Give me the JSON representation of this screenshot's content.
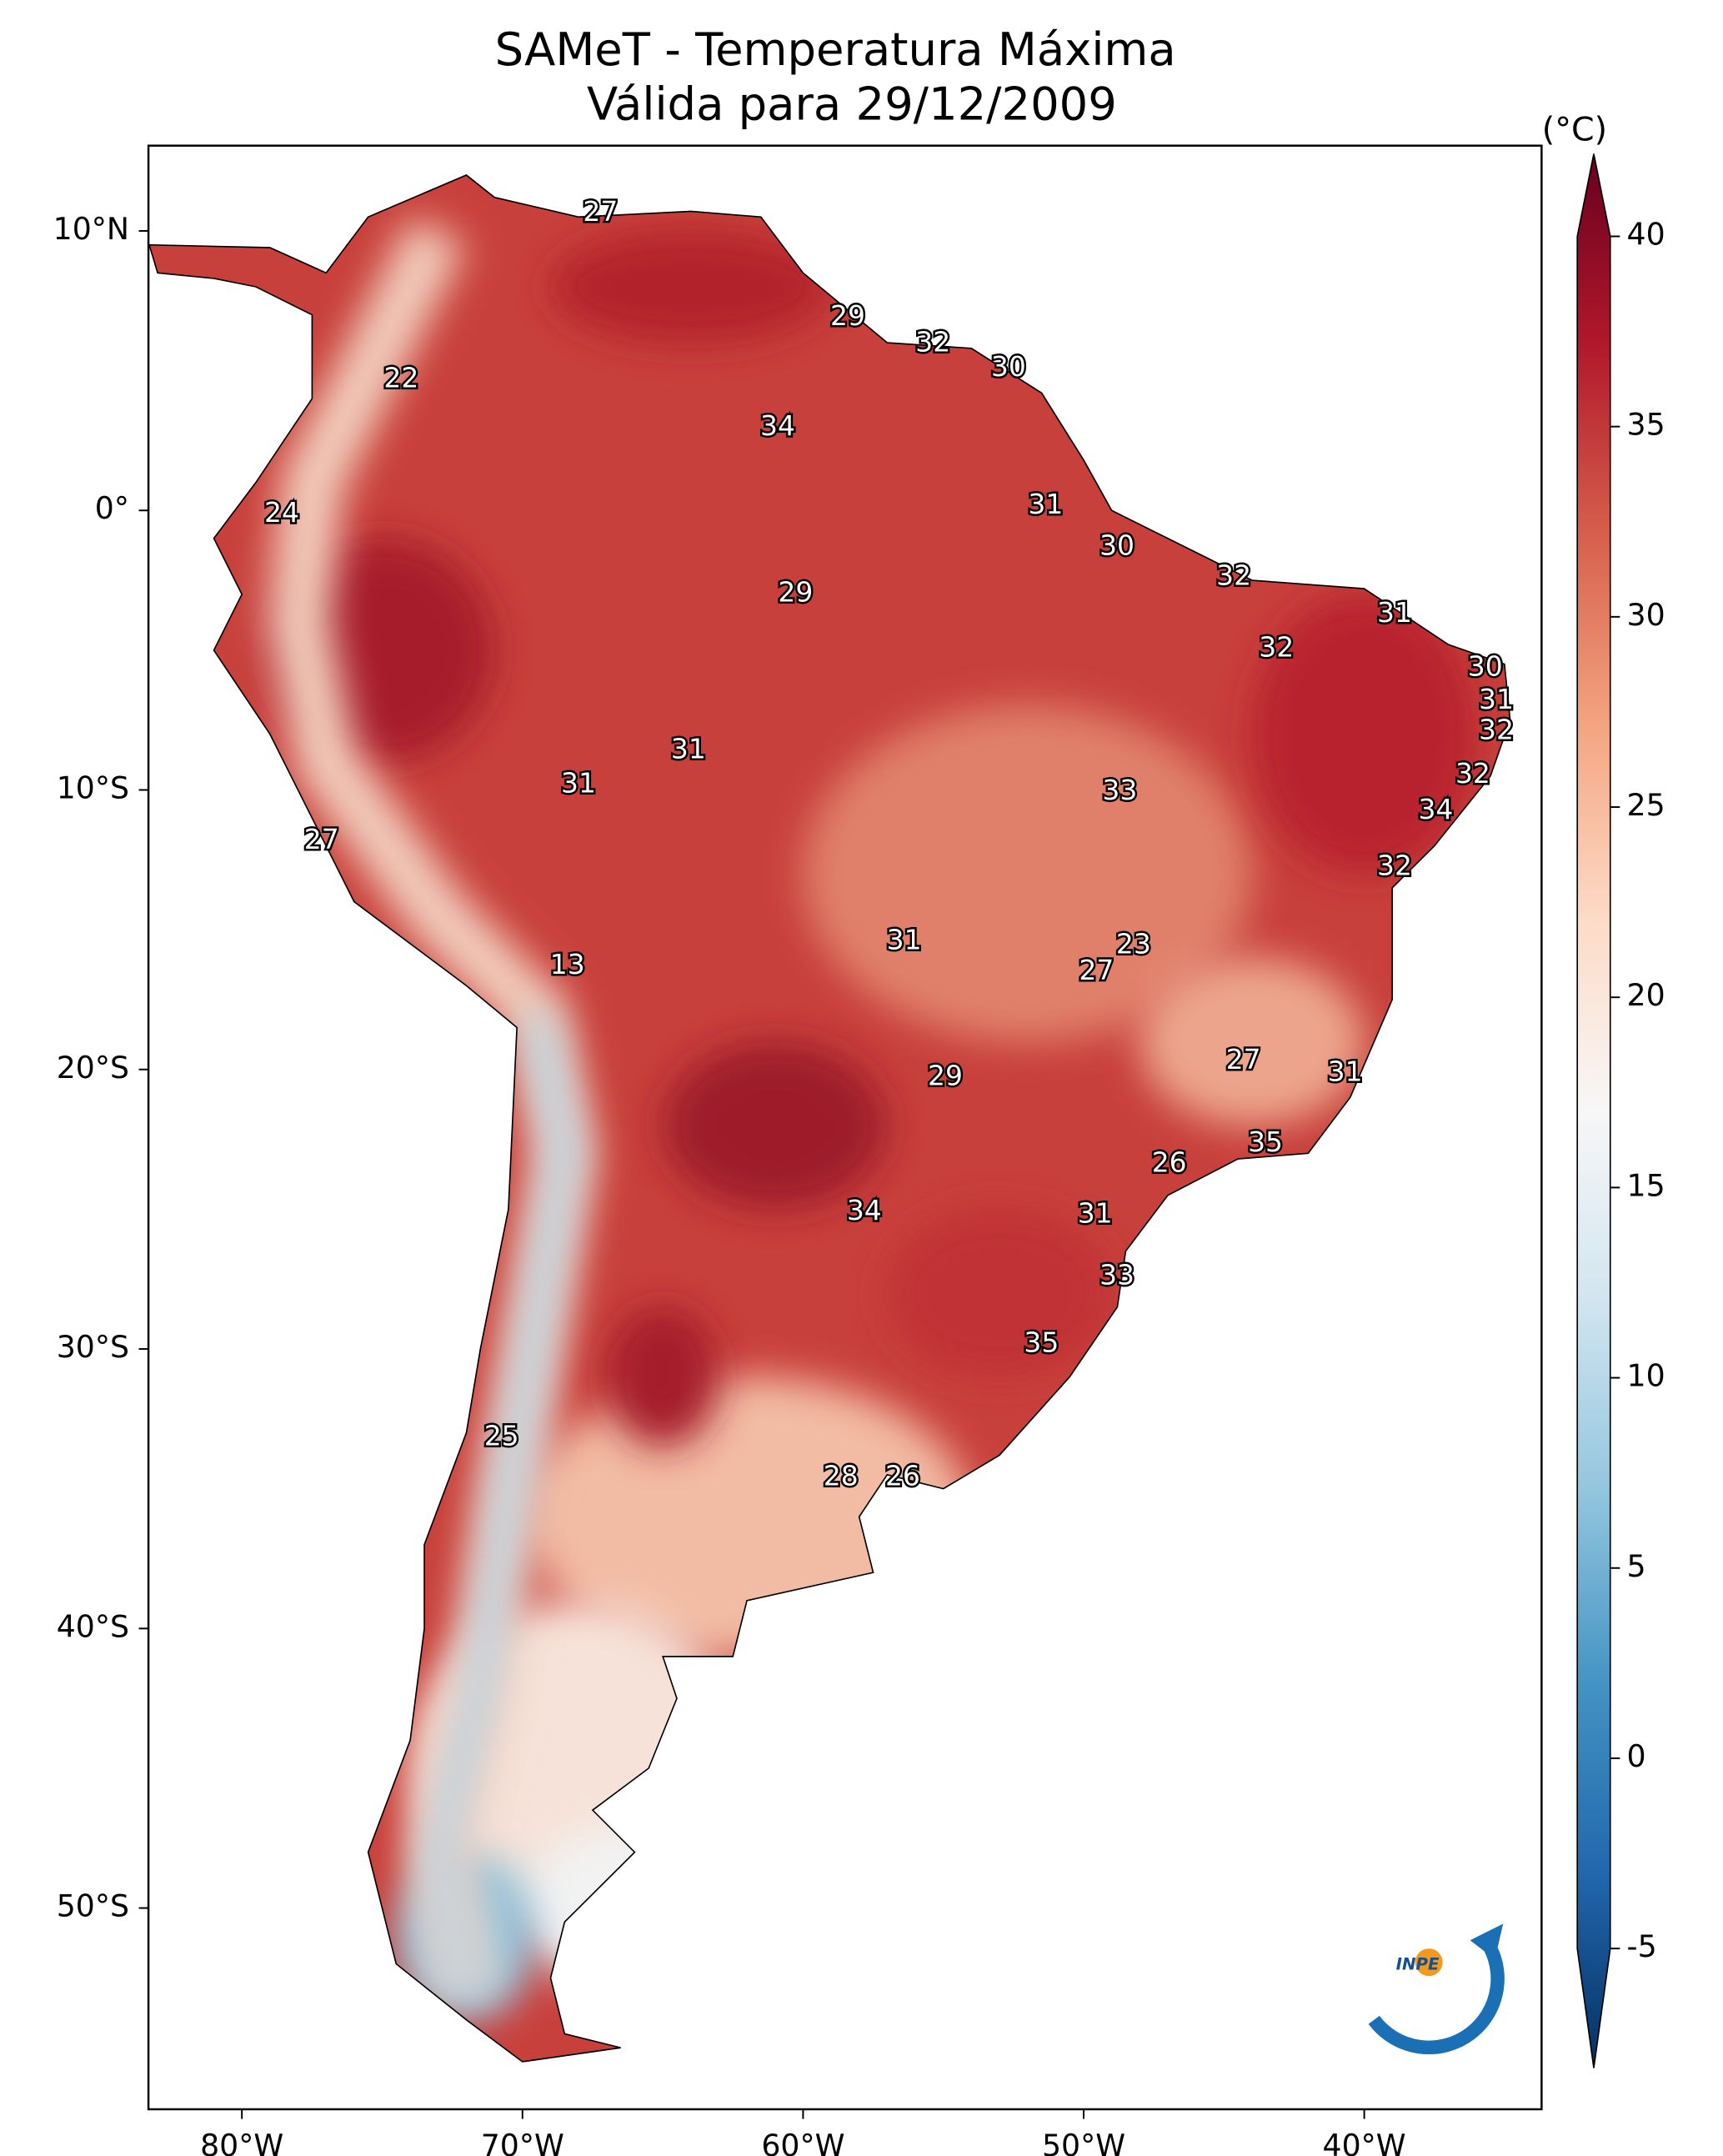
{
  "title": [
    "SAMeT - Temperatura Máxima",
    "Válida para 29/12/2009"
  ],
  "map": {
    "xlim": [
      -83.33,
      -33.68
    ],
    "ylim": [
      -57.2,
      13.05
    ],
    "xticks": [
      {
        "value": -80,
        "label": "80°W"
      },
      {
        "value": -70,
        "label": "70°W"
      },
      {
        "value": -60,
        "label": "60°W"
      },
      {
        "value": -50,
        "label": "50°W"
      },
      {
        "value": -40,
        "label": "40°W"
      }
    ],
    "yticks": [
      {
        "value": 10,
        "label": "10°N"
      },
      {
        "value": 0,
        "label": "0°"
      },
      {
        "value": -10,
        "label": "10°S"
      },
      {
        "value": -20,
        "label": "20°S"
      },
      {
        "value": -30,
        "label": "30°S"
      },
      {
        "value": -40,
        "label": "40°S"
      },
      {
        "value": -50,
        "label": "50°S"
      }
    ],
    "stations": [
      27,
      22,
      29,
      32,
      30,
      34,
      24,
      31,
      30,
      32,
      29,
      31,
      32,
      30,
      31,
      32,
      31,
      31,
      33,
      32,
      34,
      27,
      32,
      31,
      23,
      13,
      27,
      27,
      29,
      31,
      35,
      26,
      34,
      31,
      33,
      35,
      25,
      28,
      26
    ]
  },
  "colorbar": {
    "label": "(°C)",
    "lim": [
      -5,
      40
    ],
    "ticks": [
      -5,
      0,
      5,
      10,
      15,
      20,
      25,
      30,
      35,
      40
    ]
  },
  "logo": "INPE"
}
